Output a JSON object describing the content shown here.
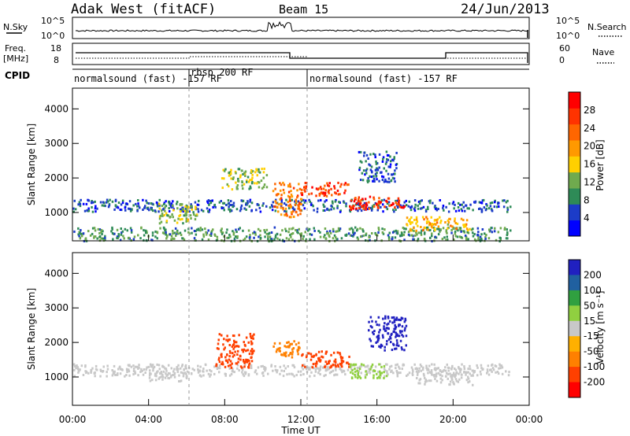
{
  "header": {
    "station": "Adak West (fitACF)",
    "beam": "Beam 15",
    "date": "24/Jun/2013"
  },
  "top_panel": {
    "left_label": "N.Sky",
    "right_label": "N.Search",
    "left_ticks": [
      "10^5",
      "10^0"
    ],
    "right_ticks": [
      "10^5",
      "10^0"
    ]
  },
  "freq_panel": {
    "left_label_1": "Freq.",
    "left_label_2": "[MHz]",
    "right_label": "Nave",
    "left_ticks": [
      "18",
      "8"
    ],
    "right_ticks": [
      "60",
      "0"
    ]
  },
  "cpid": {
    "label": "CPID",
    "segments": [
      {
        "text": "normalsound (fast) -157 RF",
        "start": 0
      },
      {
        "text": "rbsp 200 RF",
        "start": 6
      },
      {
        "text": "normalsound (fast) -157 RF",
        "start": 11.75
      }
    ]
  },
  "colors": {
    "power_scale": [
      "#0000ff",
      "#1c3cc8",
      "#2e8b57",
      "#6faa4e",
      "#ffd000",
      "#ff9900",
      "#ff6600",
      "#ff3300",
      "#ff0000"
    ],
    "velocity_scale": [
      "#2020c0",
      "#2060a0",
      "#30a040",
      "#90d040",
      "#c8c8c8",
      "#ffb000",
      "#ff8000",
      "#ff4000",
      "#ff0000"
    ]
  },
  "chart_data": [
    {
      "type": "heatmap",
      "name": "power",
      "ylabel": "Slant Range [km]",
      "ylim": [
        180,
        4600
      ],
      "yticks": [
        1000,
        2000,
        3000,
        4000
      ],
      "xlim": [
        0,
        24
      ],
      "colorbar_label": "Power [dB]",
      "colorbar_ticks": [
        4,
        8,
        12,
        16,
        20,
        24,
        28
      ],
      "colorbar_range": [
        0,
        32
      ],
      "regions": [
        {
          "t0": 0.0,
          "t1": 23.0,
          "r0": 1050,
          "r1": 1400,
          "v": 6
        },
        {
          "t0": 0.0,
          "t1": 23.0,
          "r0": 200,
          "r1": 600,
          "v": 10
        },
        {
          "t0": 4.5,
          "t1": 6.5,
          "r0": 700,
          "r1": 1300,
          "v": 14
        },
        {
          "t0": 7.8,
          "t1": 10.2,
          "r0": 1700,
          "r1": 2300,
          "v": 13
        },
        {
          "t0": 10.5,
          "t1": 12.0,
          "r0": 900,
          "r1": 1900,
          "v": 22
        },
        {
          "t0": 12.0,
          "t1": 14.5,
          "r0": 1500,
          "r1": 1900,
          "v": 26
        },
        {
          "t0": 14.5,
          "t1": 17.5,
          "r0": 1100,
          "r1": 1500,
          "v": 27
        },
        {
          "t0": 15.0,
          "t1": 17.0,
          "r0": 1900,
          "r1": 2800,
          "v": 6
        },
        {
          "t0": 17.5,
          "t1": 21.0,
          "r0": 500,
          "r1": 900,
          "v": 18
        }
      ]
    },
    {
      "type": "heatmap",
      "name": "velocity",
      "ylabel": "Slant Range [km]",
      "xlabel": "Time UT",
      "ylim": [
        180,
        4600
      ],
      "yticks": [
        1000,
        2000,
        3000,
        4000
      ],
      "xlim": [
        0,
        24
      ],
      "xticks": [
        "00:00",
        "04:00",
        "08:00",
        "12:00",
        "16:00",
        "20:00",
        "00:00"
      ],
      "colorbar_label": "Velocity [m s⁻¹]",
      "colorbar_ticks": [
        "200",
        "100",
        "50",
        "15",
        "-15",
        "-50",
        "-100",
        "-200"
      ],
      "regions": [
        {
          "t0": 0.0,
          "t1": 23.0,
          "r0": 1050,
          "r1": 1400,
          "v": 0
        },
        {
          "t0": 4.0,
          "t1": 6.0,
          "r0": 900,
          "r1": 1300,
          "v": 0
        },
        {
          "t0": 7.5,
          "t1": 9.5,
          "r0": 1300,
          "r1": 2300,
          "v": -150
        },
        {
          "t0": 10.5,
          "t1": 12.0,
          "r0": 1600,
          "r1": 2100,
          "v": -80
        },
        {
          "t0": 12.0,
          "t1": 14.5,
          "r0": 1300,
          "r1": 1800,
          "v": -120
        },
        {
          "t0": 14.5,
          "t1": 16.5,
          "r0": 1000,
          "r1": 1400,
          "v": 40
        },
        {
          "t0": 15.5,
          "t1": 17.5,
          "r0": 1800,
          "r1": 2800,
          "v": 220
        },
        {
          "t0": 18.0,
          "t1": 21.0,
          "r0": 800,
          "r1": 1300,
          "v": 0
        }
      ]
    }
  ]
}
